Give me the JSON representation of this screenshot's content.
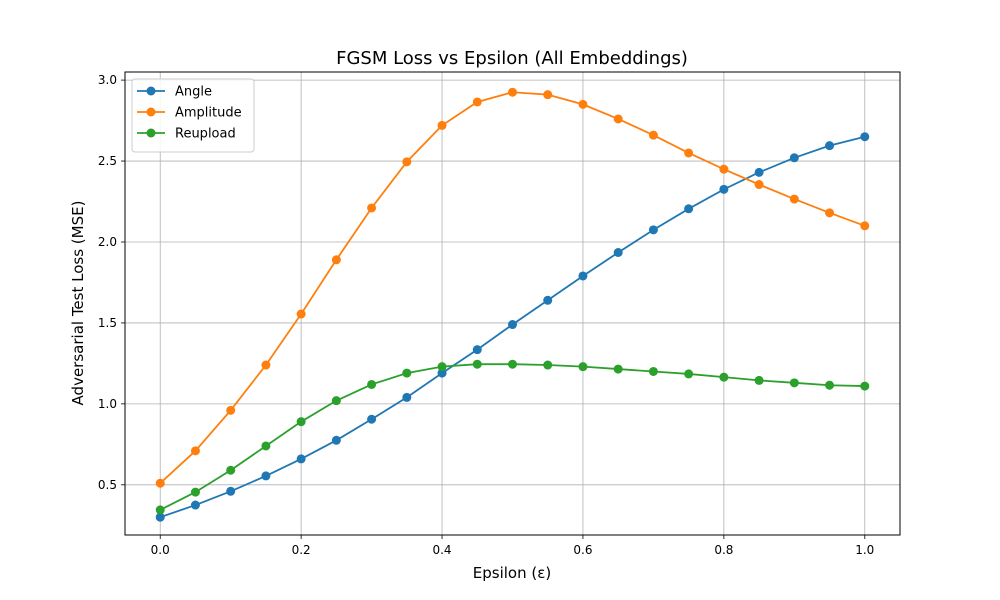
{
  "chart_data": {
    "type": "line",
    "title": "FGSM Loss vs Epsilon (All Embeddings)",
    "xlabel": "Epsilon (ε)",
    "ylabel": "Adversarial Test Loss (MSE)",
    "xlim": [
      -0.05,
      1.05
    ],
    "ylim": [
      0.19,
      3.05
    ],
    "xticks": [
      0.0,
      0.2,
      0.4,
      0.6,
      0.8,
      1.0
    ],
    "xtick_labels": [
      "0.0",
      "0.2",
      "0.4",
      "0.6",
      "0.8",
      "1.0"
    ],
    "yticks": [
      0.5,
      1.0,
      1.5,
      2.0,
      2.5,
      3.0
    ],
    "ytick_labels": [
      "0.5",
      "1.0",
      "1.5",
      "2.0",
      "2.5",
      "3.0"
    ],
    "grid": true,
    "legend_position": "top-left",
    "x": [
      0.0,
      0.05,
      0.1,
      0.15,
      0.2,
      0.25,
      0.3,
      0.35,
      0.4,
      0.45,
      0.5,
      0.55,
      0.6,
      0.65,
      0.7,
      0.75,
      0.8,
      0.85,
      0.9,
      0.95,
      1.0
    ],
    "series": [
      {
        "name": "Angle",
        "color": "#1f77b4",
        "values": [
          0.3,
          0.375,
          0.46,
          0.555,
          0.66,
          0.775,
          0.905,
          1.04,
          1.19,
          1.335,
          1.49,
          1.64,
          1.79,
          1.935,
          2.075,
          2.205,
          2.325,
          2.43,
          2.52,
          2.595,
          2.65
        ]
      },
      {
        "name": "Amplitude",
        "color": "#ff7f0e",
        "values": [
          0.51,
          0.71,
          0.96,
          1.24,
          1.555,
          1.89,
          2.21,
          2.495,
          2.72,
          2.865,
          2.925,
          2.91,
          2.85,
          2.76,
          2.66,
          2.55,
          2.45,
          2.355,
          2.265,
          2.18,
          2.1
        ]
      },
      {
        "name": "Reupload",
        "color": "#2ca02c",
        "values": [
          0.345,
          0.455,
          0.59,
          0.74,
          0.89,
          1.02,
          1.12,
          1.19,
          1.23,
          1.245,
          1.245,
          1.24,
          1.23,
          1.215,
          1.2,
          1.185,
          1.165,
          1.145,
          1.13,
          1.115,
          1.11
        ]
      }
    ]
  }
}
